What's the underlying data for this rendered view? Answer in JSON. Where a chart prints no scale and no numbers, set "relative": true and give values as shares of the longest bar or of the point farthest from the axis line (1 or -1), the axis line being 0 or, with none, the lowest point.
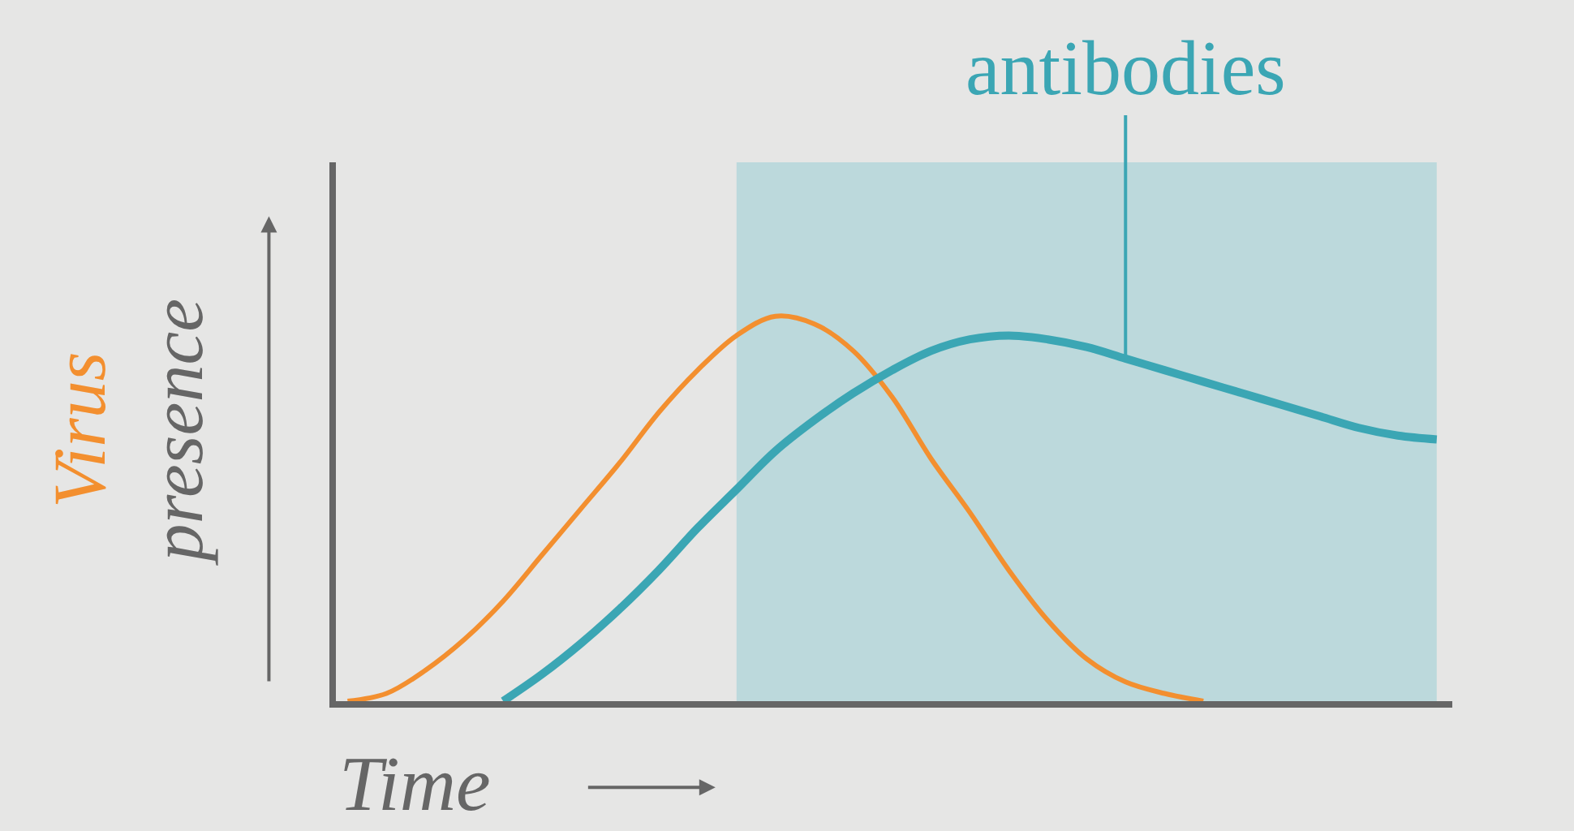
{
  "chart_data": {
    "type": "line",
    "relative": true,
    "xlabel": "Time",
    "ylabel": "Virus presence",
    "categories": [
      null,
      null,
      null,
      null,
      null,
      null,
      null,
      null,
      null,
      null,
      null,
      null,
      null,
      null,
      null,
      null,
      null,
      null,
      null,
      null,
      null,
      null,
      null,
      null,
      null,
      null,
      null,
      null,
      null
    ],
    "series": [
      {
        "color": "#f38f2f",
        "values": [
          0,
          0.02,
          0.08,
          0.16,
          0.26,
          0.38,
          0.5,
          0.62,
          0.75,
          0.86,
          0.95,
          1.0,
          0.98,
          0.91,
          0.79,
          0.63,
          0.49,
          0.34,
          0.21,
          0.11,
          0.05,
          0.02,
          0,
          null,
          null,
          null,
          null,
          null,
          null
        ]
      },
      {
        "color": "#3ba6b4",
        "values": [
          null,
          null,
          null,
          null,
          0,
          0.07,
          0.15,
          0.24,
          0.34,
          0.45,
          0.55,
          0.65,
          0.73,
          0.8,
          0.86,
          0.91,
          0.94,
          0.95,
          0.94,
          0.92,
          0.89,
          0.86,
          0.83,
          0.8,
          0.77,
          0.74,
          0.71,
          0.69,
          0.68
        ]
      }
    ],
    "annotations": [
      "antibodies"
    ],
    "grid": false,
    "line_style": "solid",
    "marker": "none"
  }
}
